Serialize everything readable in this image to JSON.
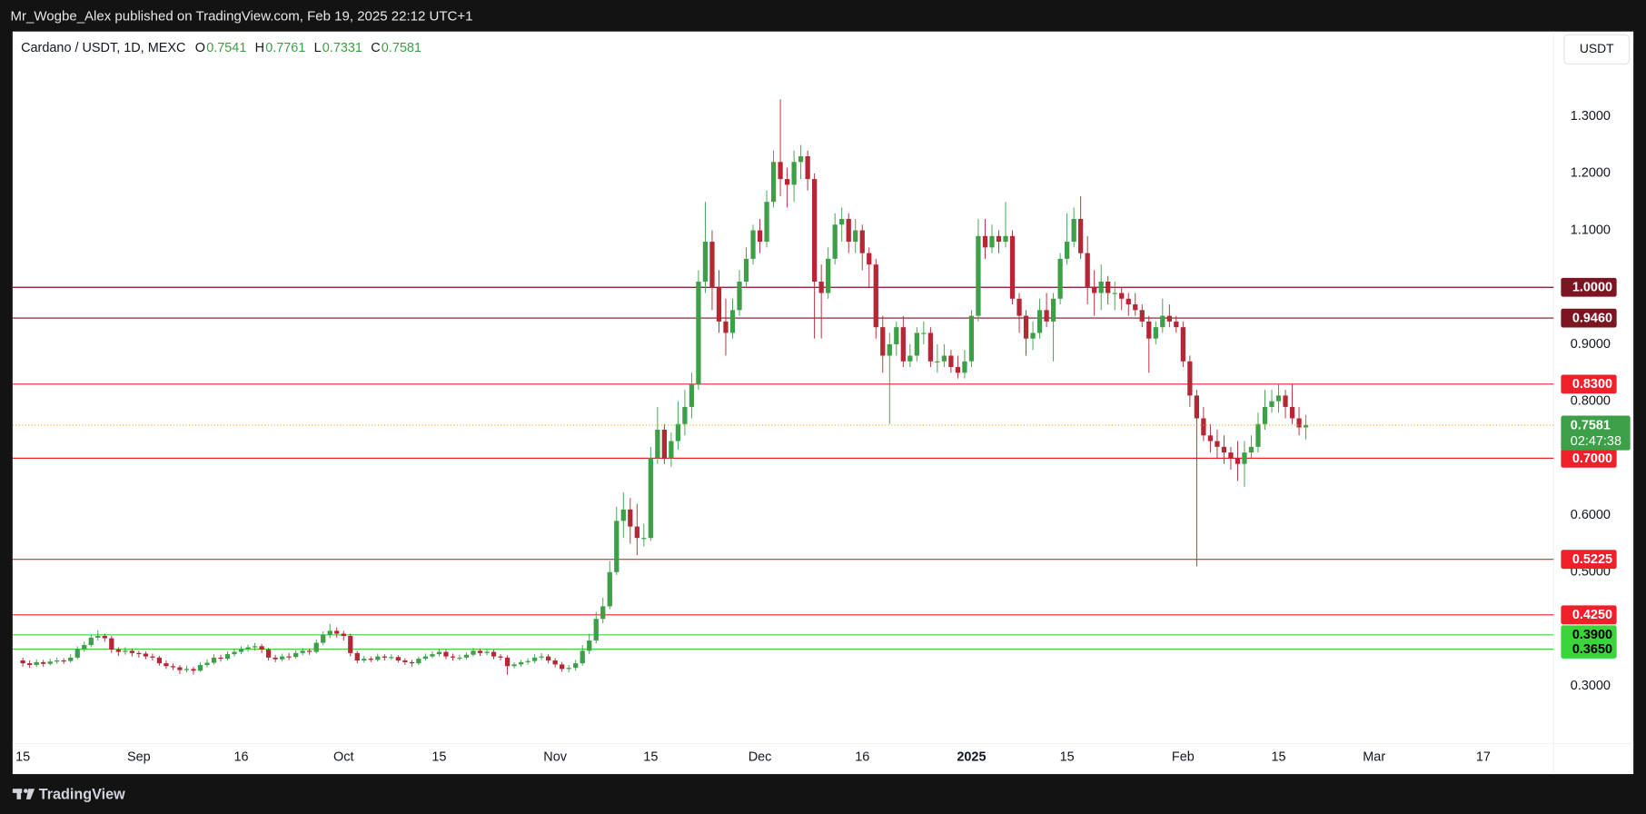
{
  "header": {
    "publisher": "Mr_Wogbe_Alex published on TradingView.com, Feb 19, 2025 22:12 UTC+1"
  },
  "footer": {
    "brand": "TradingView"
  },
  "chart_data": {
    "type": "candlestick",
    "symbol": "Cardano / USDT, 1D, MEXC",
    "ohlc_legend": [
      {
        "label": "O",
        "value": 0.7541
      },
      {
        "label": "H",
        "value": 0.7761
      },
      {
        "label": "L",
        "value": 0.7331
      },
      {
        "label": "C",
        "value": 0.7581
      }
    ],
    "currency": "USDT",
    "countdown": "02:47:38",
    "up_color": "#3d9f48",
    "down_color": "#b52735",
    "grid": false,
    "xlim": [
      -1.5,
      224.3
    ],
    "ylim": [
      0.199,
      1.449
    ],
    "xticks": [
      {
        "value": 0,
        "label": "15"
      },
      {
        "value": 17,
        "label": "Sep"
      },
      {
        "value": 32,
        "label": "16"
      },
      {
        "value": 47,
        "label": "Oct"
      },
      {
        "value": 61,
        "label": "15"
      },
      {
        "value": 78,
        "label": "Nov"
      },
      {
        "value": 92,
        "label": "15"
      },
      {
        "value": 108,
        "label": "Dec"
      },
      {
        "value": 123,
        "label": "16"
      },
      {
        "value": 139,
        "label": "2025"
      },
      {
        "value": 153,
        "label": "15"
      },
      {
        "value": 170,
        "label": "Feb"
      },
      {
        "value": 184,
        "label": "15"
      },
      {
        "value": 198,
        "label": "Mar"
      },
      {
        "value": 214,
        "label": "17"
      }
    ],
    "yticks": [
      {
        "value": 1.3,
        "label": "1.3000"
      },
      {
        "value": 1.2,
        "label": "1.2000"
      },
      {
        "value": 1.1,
        "label": "1.1000"
      },
      {
        "value": 0.9,
        "label": "0.9000"
      },
      {
        "value": 0.8,
        "label": "0.8000"
      },
      {
        "value": 0.6,
        "label": "0.6000"
      },
      {
        "value": 0.5,
        "label": "0.5000"
      },
      {
        "value": 0.3,
        "label": "0.3000"
      }
    ],
    "levels": [
      {
        "value": 1.0,
        "label": "1.0000",
        "color": "#7d1421",
        "text_color": "#ffffff"
      },
      {
        "value": 0.946,
        "label": "0.9460",
        "color": "#7d1421",
        "text_color": "#ffffff"
      },
      {
        "value": 0.83,
        "label": "0.8300",
        "color": "#f0202a",
        "text_color": "#ffffff"
      },
      {
        "value": 0.7,
        "label": "0.7000",
        "color": "#f0202a",
        "text_color": "#ffffff"
      },
      {
        "value": 0.5225,
        "label": "0.5225",
        "color": "#f0202a",
        "text_color": "#ffffff"
      },
      {
        "value": 0.425,
        "label": "0.4250",
        "color": "#f0202a",
        "text_color": "#ffffff"
      },
      {
        "value": 0.39,
        "label": "0.3900",
        "color": "#3bd43b",
        "text_color": "#000000"
      },
      {
        "value": 0.365,
        "label": "0.3650",
        "color": "#3bd43b",
        "text_color": "#000000"
      }
    ],
    "candles": [
      [
        0.345,
        0.35,
        0.334,
        0.34
      ],
      [
        0.34,
        0.345,
        0.332,
        0.337
      ],
      [
        0.337,
        0.347,
        0.333,
        0.342
      ],
      [
        0.342,
        0.346,
        0.334,
        0.339
      ],
      [
        0.339,
        0.348,
        0.336,
        0.343
      ],
      [
        0.343,
        0.35,
        0.339,
        0.345
      ],
      [
        0.345,
        0.349,
        0.339,
        0.344
      ],
      [
        0.344,
        0.356,
        0.341,
        0.35
      ],
      [
        0.35,
        0.37,
        0.347,
        0.365
      ],
      [
        0.365,
        0.378,
        0.36,
        0.372
      ],
      [
        0.372,
        0.39,
        0.368,
        0.385
      ],
      [
        0.385,
        0.398,
        0.38,
        0.388
      ],
      [
        0.388,
        0.392,
        0.378,
        0.384
      ],
      [
        0.384,
        0.388,
        0.358,
        0.364
      ],
      [
        0.364,
        0.368,
        0.353,
        0.36
      ],
      [
        0.36,
        0.368,
        0.355,
        0.362
      ],
      [
        0.362,
        0.366,
        0.352,
        0.358
      ],
      [
        0.358,
        0.362,
        0.35,
        0.357
      ],
      [
        0.357,
        0.361,
        0.347,
        0.352
      ],
      [
        0.352,
        0.357,
        0.345,
        0.35
      ],
      [
        0.35,
        0.353,
        0.336,
        0.34
      ],
      [
        0.34,
        0.345,
        0.33,
        0.335
      ],
      [
        0.335,
        0.34,
        0.328,
        0.333
      ],
      [
        0.333,
        0.337,
        0.321,
        0.328
      ],
      [
        0.328,
        0.336,
        0.324,
        0.33
      ],
      [
        0.33,
        0.334,
        0.32,
        0.327
      ],
      [
        0.327,
        0.342,
        0.325,
        0.337
      ],
      [
        0.337,
        0.347,
        0.333,
        0.341
      ],
      [
        0.341,
        0.356,
        0.338,
        0.35
      ],
      [
        0.35,
        0.355,
        0.343,
        0.348
      ],
      [
        0.348,
        0.361,
        0.345,
        0.356
      ],
      [
        0.356,
        0.366,
        0.352,
        0.36
      ],
      [
        0.36,
        0.37,
        0.356,
        0.365
      ],
      [
        0.365,
        0.373,
        0.36,
        0.368
      ],
      [
        0.368,
        0.376,
        0.362,
        0.37
      ],
      [
        0.37,
        0.374,
        0.358,
        0.364
      ],
      [
        0.364,
        0.367,
        0.345,
        0.35
      ],
      [
        0.35,
        0.355,
        0.342,
        0.347
      ],
      [
        0.347,
        0.357,
        0.343,
        0.352
      ],
      [
        0.352,
        0.358,
        0.346,
        0.351
      ],
      [
        0.351,
        0.363,
        0.348,
        0.358
      ],
      [
        0.358,
        0.367,
        0.354,
        0.362
      ],
      [
        0.362,
        0.366,
        0.355,
        0.36
      ],
      [
        0.36,
        0.382,
        0.357,
        0.376
      ],
      [
        0.376,
        0.396,
        0.372,
        0.39
      ],
      [
        0.39,
        0.409,
        0.384,
        0.397
      ],
      [
        0.397,
        0.403,
        0.385,
        0.392
      ],
      [
        0.392,
        0.397,
        0.38,
        0.388
      ],
      [
        0.388,
        0.392,
        0.352,
        0.358
      ],
      [
        0.358,
        0.362,
        0.34,
        0.345
      ],
      [
        0.345,
        0.353,
        0.341,
        0.348
      ],
      [
        0.348,
        0.352,
        0.342,
        0.346
      ],
      [
        0.346,
        0.357,
        0.343,
        0.352
      ],
      [
        0.352,
        0.356,
        0.345,
        0.35
      ],
      [
        0.35,
        0.356,
        0.346,
        0.351
      ],
      [
        0.351,
        0.354,
        0.341,
        0.345
      ],
      [
        0.345,
        0.349,
        0.337,
        0.342
      ],
      [
        0.342,
        0.346,
        0.334,
        0.34
      ],
      [
        0.34,
        0.352,
        0.337,
        0.348
      ],
      [
        0.348,
        0.357,
        0.345,
        0.352
      ],
      [
        0.352,
        0.361,
        0.349,
        0.356
      ],
      [
        0.356,
        0.366,
        0.352,
        0.36
      ],
      [
        0.36,
        0.364,
        0.347,
        0.352
      ],
      [
        0.352,
        0.357,
        0.345,
        0.35
      ],
      [
        0.35,
        0.355,
        0.345,
        0.35
      ],
      [
        0.35,
        0.359,
        0.347,
        0.355
      ],
      [
        0.355,
        0.367,
        0.352,
        0.362
      ],
      [
        0.362,
        0.366,
        0.353,
        0.358
      ],
      [
        0.358,
        0.365,
        0.354,
        0.36
      ],
      [
        0.36,
        0.364,
        0.347,
        0.352
      ],
      [
        0.352,
        0.356,
        0.345,
        0.35
      ],
      [
        0.35,
        0.354,
        0.32,
        0.335
      ],
      [
        0.335,
        0.342,
        0.331,
        0.338
      ],
      [
        0.338,
        0.346,
        0.334,
        0.342
      ],
      [
        0.342,
        0.349,
        0.338,
        0.344
      ],
      [
        0.344,
        0.356,
        0.34,
        0.35
      ],
      [
        0.35,
        0.358,
        0.346,
        0.352
      ],
      [
        0.352,
        0.356,
        0.34,
        0.345
      ],
      [
        0.345,
        0.349,
        0.333,
        0.338
      ],
      [
        0.338,
        0.342,
        0.325,
        0.33
      ],
      [
        0.33,
        0.337,
        0.324,
        0.332
      ],
      [
        0.332,
        0.346,
        0.327,
        0.34
      ],
      [
        0.34,
        0.372,
        0.336,
        0.362
      ],
      [
        0.362,
        0.392,
        0.356,
        0.38
      ],
      [
        0.38,
        0.43,
        0.375,
        0.418
      ],
      [
        0.418,
        0.455,
        0.41,
        0.44
      ],
      [
        0.44,
        0.52,
        0.435,
        0.5
      ],
      [
        0.5,
        0.615,
        0.495,
        0.59
      ],
      [
        0.59,
        0.64,
        0.56,
        0.61
      ],
      [
        0.61,
        0.63,
        0.55,
        0.58
      ],
      [
        0.58,
        0.62,
        0.53,
        0.56
      ],
      [
        0.56,
        0.585,
        0.545,
        0.56
      ],
      [
        0.56,
        0.72,
        0.555,
        0.7
      ],
      [
        0.7,
        0.79,
        0.69,
        0.75
      ],
      [
        0.75,
        0.76,
        0.69,
        0.7
      ],
      [
        0.7,
        0.745,
        0.685,
        0.73
      ],
      [
        0.73,
        0.8,
        0.715,
        0.76
      ],
      [
        0.76,
        0.82,
        0.74,
        0.79
      ],
      [
        0.79,
        0.85,
        0.77,
        0.83
      ],
      [
        0.83,
        1.03,
        0.82,
        1.01
      ],
      [
        1.01,
        1.15,
        0.99,
        1.08
      ],
      [
        1.08,
        1.1,
        0.96,
        1.0
      ],
      [
        1.0,
        1.03,
        0.92,
        0.94
      ],
      [
        0.94,
        0.98,
        0.88,
        0.92
      ],
      [
        0.92,
        0.98,
        0.91,
        0.96
      ],
      [
        0.96,
        1.03,
        0.95,
        1.01
      ],
      [
        1.01,
        1.07,
        1.0,
        1.05
      ],
      [
        1.05,
        1.11,
        1.04,
        1.1
      ],
      [
        1.1,
        1.12,
        1.06,
        1.08
      ],
      [
        1.08,
        1.17,
        1.07,
        1.15
      ],
      [
        1.15,
        1.24,
        1.14,
        1.22
      ],
      [
        1.22,
        1.33,
        1.16,
        1.19
      ],
      [
        1.19,
        1.21,
        1.14,
        1.18
      ],
      [
        1.18,
        1.24,
        1.15,
        1.22
      ],
      [
        1.22,
        1.25,
        1.19,
        1.23
      ],
      [
        1.23,
        1.24,
        1.17,
        1.19
      ],
      [
        1.19,
        1.2,
        0.91,
        1.01
      ],
      [
        1.01,
        1.04,
        0.91,
        0.99
      ],
      [
        0.99,
        1.07,
        0.98,
        1.05
      ],
      [
        1.05,
        1.13,
        1.04,
        1.11
      ],
      [
        1.11,
        1.14,
        1.08,
        1.12
      ],
      [
        1.12,
        1.13,
        1.06,
        1.08
      ],
      [
        1.08,
        1.12,
        1.06,
        1.1
      ],
      [
        1.1,
        1.11,
        1.03,
        1.06
      ],
      [
        1.06,
        1.07,
        1.0,
        1.04
      ],
      [
        1.04,
        1.05,
        0.91,
        0.93
      ],
      [
        0.93,
        0.95,
        0.85,
        0.88
      ],
      [
        0.88,
        0.92,
        0.76,
        0.9
      ],
      [
        0.9,
        0.94,
        0.88,
        0.93
      ],
      [
        0.93,
        0.95,
        0.86,
        0.87
      ],
      [
        0.87,
        0.9,
        0.86,
        0.88
      ],
      [
        0.88,
        0.93,
        0.87,
        0.92
      ],
      [
        0.92,
        0.94,
        0.9,
        0.92
      ],
      [
        0.92,
        0.93,
        0.86,
        0.87
      ],
      [
        0.87,
        0.9,
        0.85,
        0.87
      ],
      [
        0.87,
        0.9,
        0.86,
        0.88
      ],
      [
        0.88,
        0.89,
        0.85,
        0.86
      ],
      [
        0.86,
        0.88,
        0.84,
        0.85
      ],
      [
        0.85,
        0.89,
        0.84,
        0.87
      ],
      [
        0.87,
        0.96,
        0.86,
        0.95
      ],
      [
        0.95,
        1.12,
        0.94,
        1.09
      ],
      [
        1.09,
        1.12,
        1.05,
        1.07
      ],
      [
        1.07,
        1.11,
        1.06,
        1.09
      ],
      [
        1.09,
        1.1,
        1.06,
        1.08
      ],
      [
        1.08,
        1.15,
        1.07,
        1.09
      ],
      [
        1.09,
        1.1,
        0.97,
        0.98
      ],
      [
        0.98,
        0.99,
        0.92,
        0.95
      ],
      [
        0.95,
        0.96,
        0.88,
        0.91
      ],
      [
        0.91,
        0.94,
        0.89,
        0.92
      ],
      [
        0.92,
        0.98,
        0.91,
        0.96
      ],
      [
        0.96,
        0.99,
        0.93,
        0.94
      ],
      [
        0.94,
        0.99,
        0.87,
        0.98
      ],
      [
        0.98,
        1.06,
        0.97,
        1.05
      ],
      [
        1.05,
        1.13,
        1.04,
        1.08
      ],
      [
        1.08,
        1.14,
        1.07,
        1.12
      ],
      [
        1.12,
        1.16,
        1.05,
        1.06
      ],
      [
        1.06,
        1.09,
        0.97,
        1.0
      ],
      [
        1.0,
        1.03,
        0.95,
        0.99
      ],
      [
        0.99,
        1.04,
        0.96,
        1.01
      ],
      [
        1.01,
        1.02,
        0.97,
        0.99
      ],
      [
        0.99,
        1.01,
        0.96,
        0.99
      ],
      [
        0.99,
        1.0,
        0.96,
        0.98
      ],
      [
        0.98,
        0.99,
        0.95,
        0.97
      ],
      [
        0.97,
        0.99,
        0.95,
        0.96
      ],
      [
        0.96,
        0.97,
        0.93,
        0.94
      ],
      [
        0.94,
        0.95,
        0.85,
        0.91
      ],
      [
        0.91,
        0.94,
        0.9,
        0.93
      ],
      [
        0.93,
        0.98,
        0.92,
        0.95
      ],
      [
        0.95,
        0.97,
        0.93,
        0.94
      ],
      [
        0.94,
        0.95,
        0.92,
        0.93
      ],
      [
        0.93,
        0.94,
        0.86,
        0.87
      ],
      [
        0.87,
        0.88,
        0.79,
        0.81
      ],
      [
        0.81,
        0.82,
        0.51,
        0.77
      ],
      [
        0.77,
        0.79,
        0.73,
        0.74
      ],
      [
        0.74,
        0.76,
        0.71,
        0.73
      ],
      [
        0.73,
        0.75,
        0.7,
        0.72
      ],
      [
        0.72,
        0.74,
        0.69,
        0.71
      ],
      [
        0.71,
        0.72,
        0.68,
        0.7
      ],
      [
        0.7,
        0.73,
        0.66,
        0.69
      ],
      [
        0.69,
        0.73,
        0.65,
        0.71
      ],
      [
        0.71,
        0.74,
        0.7,
        0.72
      ],
      [
        0.72,
        0.78,
        0.71,
        0.76
      ],
      [
        0.76,
        0.82,
        0.75,
        0.79
      ],
      [
        0.79,
        0.82,
        0.78,
        0.8
      ],
      [
        0.8,
        0.83,
        0.78,
        0.81
      ],
      [
        0.81,
        0.82,
        0.77,
        0.79
      ],
      [
        0.79,
        0.83,
        0.76,
        0.77
      ],
      [
        0.77,
        0.79,
        0.74,
        0.7541
      ],
      [
        0.7541,
        0.7761,
        0.7331,
        0.7581
      ]
    ]
  }
}
